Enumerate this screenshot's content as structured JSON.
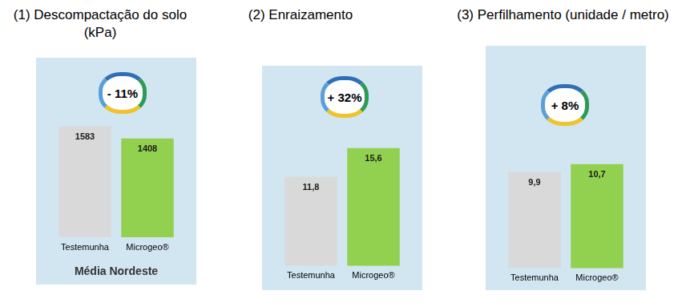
{
  "chart_data": [
    {
      "type": "bar",
      "title": "(1) Descompactação do solo (kPa)",
      "annotation": "- 11%",
      "xlabel": "Média Nordeste",
      "categories": [
        "Testemunha",
        "Microgeo®"
      ],
      "values": [
        1583,
        1408
      ],
      "colors": [
        "#d9d9d9",
        "#92d050"
      ],
      "data_labels": true,
      "tick_labels": "x",
      "grid": false
    },
    {
      "type": "bar",
      "title": "(2) Enraizamento",
      "annotation": "+ 32%",
      "categories": [
        "Testemunha",
        "Microgeo®"
      ],
      "values": [
        11.8,
        15.6
      ],
      "value_labels": [
        "11,8",
        "15,6"
      ],
      "colors": [
        "#d9d9d9",
        "#92d050"
      ],
      "data_labels": true,
      "tick_labels": "x",
      "grid": false
    },
    {
      "type": "bar",
      "title": "(3) Perfilhamento (unidade / metro)",
      "annotation": "+ 8%",
      "categories": [
        "Testemunha",
        "Microgeo®"
      ],
      "values": [
        9.9,
        10.7
      ],
      "value_labels": [
        "9,9",
        "10,7"
      ],
      "colors": [
        "#d9d9d9",
        "#92d050"
      ],
      "data_labels": true,
      "tick_labels": "x",
      "grid": false
    }
  ]
}
